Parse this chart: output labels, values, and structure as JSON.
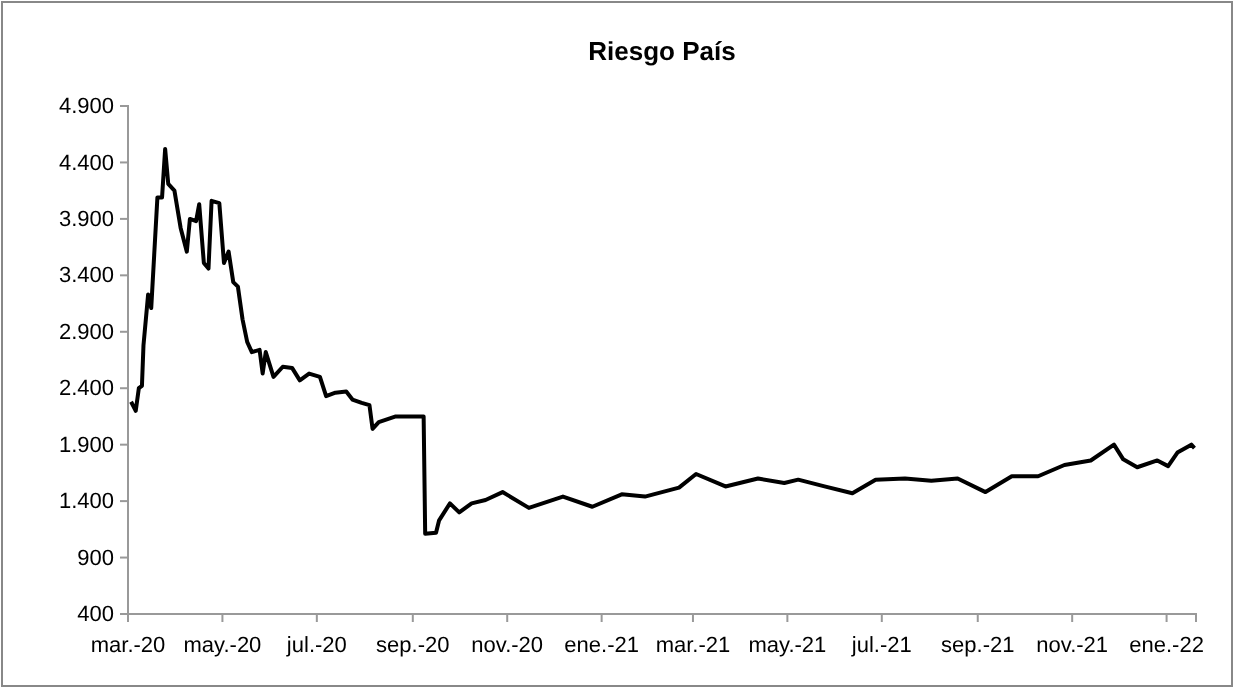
{
  "chart_data": {
    "type": "line",
    "title": "Riesgo País",
    "x": [
      "2020-03-03",
      "2020-03-06",
      "2020-03-08",
      "2020-03-10",
      "2020-03-11",
      "2020-03-14",
      "2020-03-16",
      "2020-03-20",
      "2020-03-23",
      "2020-03-25",
      "2020-03-27",
      "2020-03-31",
      "2020-04-04",
      "2020-04-08",
      "2020-04-10",
      "2020-04-14",
      "2020-04-16",
      "2020-04-19",
      "2020-04-22",
      "2020-04-24",
      "2020-04-29",
      "2020-05-02",
      "2020-05-05",
      "2020-05-08",
      "2020-05-11",
      "2020-05-14",
      "2020-05-17",
      "2020-05-20",
      "2020-05-25",
      "2020-05-27",
      "2020-05-29",
      "2020-06-03",
      "2020-06-09",
      "2020-06-15",
      "2020-06-20",
      "2020-06-26",
      "2020-07-03",
      "2020-07-07",
      "2020-07-13",
      "2020-07-20",
      "2020-07-24",
      "2020-07-30",
      "2020-08-04",
      "2020-08-06",
      "2020-08-10",
      "2020-08-21",
      "2020-09-08",
      "2020-09-09",
      "2020-09-16",
      "2020-09-18",
      "2020-09-25",
      "2020-10-01",
      "2020-10-09",
      "2020-10-18",
      "2020-10-29",
      "2020-11-15",
      "2020-12-07",
      "2020-12-26",
      "2021-01-14",
      "2021-01-29",
      "2021-02-20",
      "2021-03-03",
      "2021-03-22",
      "2021-04-12",
      "2021-04-29",
      "2021-05-08",
      "2021-05-25",
      "2021-06-12",
      "2021-06-27",
      "2021-07-16",
      "2021-08-02",
      "2021-08-19",
      "2021-09-06",
      "2021-09-23",
      "2021-10-10",
      "2021-10-27",
      "2021-11-13",
      "2021-11-28",
      "2021-12-04",
      "2021-12-13",
      "2021-12-26",
      "2022-01-02",
      "2022-01-08",
      "2022-01-17",
      "2022-01-19"
    ],
    "series": [
      {
        "color": "#000000",
        "values": [
          2280,
          2200,
          2400,
          2420,
          2780,
          3230,
          3110,
          4090,
          4090,
          4520,
          4210,
          4150,
          3820,
          3610,
          3900,
          3880,
          4030,
          3510,
          3460,
          4060,
          4040,
          3510,
          3610,
          3340,
          3300,
          3010,
          2810,
          2720,
          2740,
          2530,
          2720,
          2500,
          2590,
          2580,
          2470,
          2530,
          2500,
          2330,
          2360,
          2370,
          2300,
          2270,
          2250,
          2040,
          2100,
          2150,
          2150,
          1110,
          1120,
          1230,
          1380,
          1300,
          1380,
          1410,
          1480,
          1340,
          1440,
          1350,
          1460,
          1440,
          1520,
          1640,
          1530,
          1600,
          1560,
          1590,
          1530,
          1470,
          1590,
          1600,
          1580,
          1600,
          1480,
          1620,
          1620,
          1720,
          1760,
          1900,
          1770,
          1700,
          1760,
          1710,
          1830,
          1900,
          1870
        ]
      }
    ],
    "xlim": [
      "2020-03-01",
      "2022-01-20"
    ],
    "xticks": [
      {
        "value": "2020-03-01",
        "label": "mar.-20"
      },
      {
        "value": "2020-05-01",
        "label": "may.-20"
      },
      {
        "value": "2020-07-01",
        "label": "jul.-20"
      },
      {
        "value": "2020-09-01",
        "label": "sep.-20"
      },
      {
        "value": "2020-11-01",
        "label": "nov.-20"
      },
      {
        "value": "2021-01-01",
        "label": "ene.-21"
      },
      {
        "value": "2021-03-01",
        "label": "mar.-21"
      },
      {
        "value": "2021-05-01",
        "label": "may.-21"
      },
      {
        "value": "2021-07-01",
        "label": "jul.-21"
      },
      {
        "value": "2021-09-01",
        "label": "sep.-21"
      },
      {
        "value": "2021-11-01",
        "label": "nov.-21"
      },
      {
        "value": "2022-01-01",
        "label": "ene.-22"
      }
    ],
    "ylim": [
      400,
      4900
    ],
    "yticks": [
      400,
      900,
      {
        "value": 1400,
        "label": "1.400"
      },
      {
        "value": 1900,
        "label": "1.900"
      },
      {
        "value": 2400,
        "label": "2.400"
      },
      {
        "value": 2900,
        "label": "2.900"
      },
      {
        "value": 3400,
        "label": "3.400"
      },
      {
        "value": 3900,
        "label": "3.900"
      },
      {
        "value": 4400,
        "label": "4.400"
      },
      {
        "value": 4900,
        "label": "4.900"
      }
    ],
    "grid": false,
    "marker": "none",
    "line_style": "solid"
  }
}
